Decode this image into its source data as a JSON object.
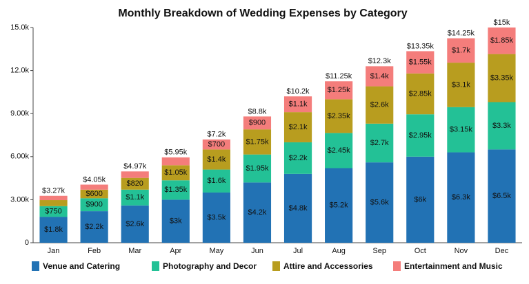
{
  "chart_data": {
    "type": "stacked_bar",
    "title": "Monthly Breakdown of Wedding Expenses by Category",
    "categories": [
      "Jan",
      "Feb",
      "Mar",
      "Apr",
      "May",
      "Jun",
      "Jul",
      "Aug",
      "Sep",
      "Oct",
      "Nov",
      "Dec"
    ],
    "series": [
      {
        "name": "Venue and Catering",
        "color": "#2272b4",
        "values": [
          1800,
          2200,
          2600,
          3000,
          3500,
          4200,
          4800,
          5200,
          5600,
          6000,
          6300,
          6500
        ],
        "value_labels": [
          "$1.8k",
          "$2.2k",
          "$2.6k",
          "$3k",
          "$3.5k",
          "$4.2k",
          "$4.8k",
          "$5.2k",
          "$5.6k",
          "$6k",
          "$6.3k",
          "$6.5k"
        ]
      },
      {
        "name": "Photography and Decor",
        "color": "#23c196",
        "values": [
          750,
          900,
          1100,
          1350,
          1600,
          1950,
          2200,
          2450,
          2700,
          2950,
          3150,
          3300
        ],
        "value_labels": [
          "$750",
          "$900",
          "$1.1k",
          "$1.35k",
          "$1.6k",
          "$1.95k",
          "$2.2k",
          "$2.45k",
          "$2.7k",
          "$2.95k",
          "$3.15k",
          "$3.3k"
        ]
      },
      {
        "name": "Attire and Accessories",
        "color": "#b89d1f",
        "values": [
          420,
          600,
          820,
          1050,
          1400,
          1750,
          2100,
          2350,
          2600,
          2850,
          3100,
          3350
        ],
        "value_labels": [
          null,
          "$600",
          "$820",
          "$1.05k",
          "$1.4k",
          "$1.75k",
          "$2.1k",
          "$2.35k",
          "$2.6k",
          "$2.85k",
          "$3.1k",
          "$3.35k"
        ]
      },
      {
        "name": "Entertainment and Music",
        "color": "#f47d7b",
        "values": [
          300,
          350,
          450,
          550,
          700,
          900,
          1100,
          1250,
          1400,
          1550,
          1700,
          1850
        ],
        "value_labels": [
          null,
          null,
          null,
          null,
          "$700",
          "$900",
          "$1.1k",
          "$1.25k",
          "$1.4k",
          "$1.55k",
          "$1.7k",
          "$1.85k"
        ]
      }
    ],
    "totals": [
      3270,
      4050,
      4970,
      5950,
      7200,
      8800,
      10200,
      11250,
      12300,
      13350,
      14250,
      15000
    ],
    "total_labels": [
      "$3.27k",
      "$4.05k",
      "$4.97k",
      "$5.95k",
      "$7.2k",
      "$8.8k",
      "$10.2k",
      "$11.25k",
      "$12.3k",
      "$13.35k",
      "$14.25k",
      "$15k"
    ],
    "ylim": [
      0,
      15000
    ],
    "yticks": [
      0,
      {
        "value": 3000,
        "label": "3.00k"
      },
      {
        "value": 6000,
        "label": "6.00k"
      },
      {
        "value": 9000,
        "label": "9.00k"
      },
      {
        "value": 12000,
        "label": "12.0k"
      },
      {
        "value": 15000,
        "label": "15.0k"
      }
    ],
    "grid": false,
    "legend": "bottom"
  }
}
